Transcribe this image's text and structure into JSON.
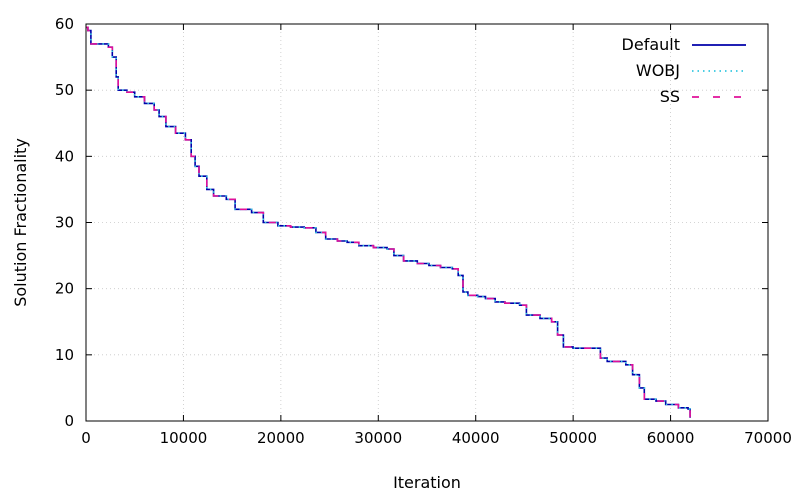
{
  "chart_data": {
    "type": "line",
    "title": "",
    "xlabel": "Iteration",
    "ylabel": "Solution Fractionality",
    "xlim": [
      0,
      70000
    ],
    "ylim": [
      0,
      60
    ],
    "xticks": [
      0,
      10000,
      20000,
      30000,
      40000,
      50000,
      60000,
      70000
    ],
    "yticks": [
      0,
      10,
      20,
      30,
      40,
      50,
      60
    ],
    "xtick_labels": [
      "0",
      "10000",
      "20000",
      "30000",
      "40000",
      "50000",
      "60000",
      "70000"
    ],
    "ytick_labels": [
      "0",
      "10",
      "20",
      "30",
      "40",
      "50",
      "60"
    ],
    "grid": true,
    "legend_position": "top-right",
    "series": [
      {
        "name": "Default",
        "color": "#0000aa",
        "style": "solid",
        "x": [
          0,
          200,
          500,
          2300,
          2700,
          3100,
          3300,
          4200,
          5000,
          6000,
          7000,
          7500,
          8200,
          9200,
          10200,
          10800,
          11200,
          11600,
          12400,
          13100,
          14400,
          15300,
          17000,
          18200,
          19700,
          21000,
          22400,
          23600,
          24600,
          25800,
          26800,
          28000,
          29500,
          30900,
          31600,
          32600,
          34000,
          35200,
          36400,
          37600,
          38200,
          38700,
          39200,
          40200,
          41000,
          42000,
          43000,
          44500,
          45200,
          46600,
          47800,
          48400,
          49000,
          50000,
          51500,
          52800,
          53500,
          55400,
          56100,
          56800,
          57300,
          58500,
          59500,
          60800,
          61800,
          62000
        ],
        "y": [
          59.5,
          59,
          57,
          56.5,
          55,
          52,
          50,
          49.7,
          49,
          48,
          47,
          46,
          44.5,
          43.5,
          42.5,
          40,
          38.5,
          37,
          35,
          34,
          33.5,
          32,
          31.5,
          30,
          29.5,
          29.3,
          29.2,
          28.5,
          27.5,
          27.2,
          27,
          26.5,
          26.2,
          26,
          25,
          24.2,
          23.8,
          23.5,
          23.2,
          23,
          22,
          19.5,
          19,
          18.8,
          18.5,
          18,
          17.8,
          17.5,
          16,
          15.5,
          15,
          13,
          11.2,
          11,
          11,
          9.5,
          9,
          8.5,
          7,
          5,
          3.3,
          3,
          2.5,
          2,
          1.8,
          0.5
        ]
      },
      {
        "name": "WOBJ",
        "color": "#33c7e0",
        "style": "dotted",
        "x": [
          0,
          200,
          500,
          2300,
          2700,
          3100,
          3300,
          4200,
          5000,
          6000,
          7000,
          7500,
          8200,
          9200,
          10200,
          10800,
          11200,
          11600,
          12400,
          13100,
          14400,
          15300,
          17000,
          18200,
          19700,
          21000,
          22400,
          23600,
          24600,
          25800,
          26800,
          28000,
          29500,
          30900,
          31600,
          32600,
          34000,
          35200,
          36400,
          37600,
          38200,
          38700,
          39200,
          40200,
          41000,
          42000,
          43000,
          44500,
          45200,
          46600,
          47800,
          48400,
          49000,
          50000,
          51500,
          52800,
          53500,
          55400,
          56100,
          56800,
          57300,
          58500,
          59500,
          60800,
          61800,
          62000
        ],
        "y": [
          59.5,
          59,
          57,
          56.5,
          55,
          52,
          50,
          49.7,
          49,
          48,
          47,
          46,
          44.5,
          43.5,
          42.5,
          40,
          38.5,
          37,
          35,
          34,
          33.5,
          32,
          31.5,
          30,
          29.5,
          29.3,
          29.2,
          28.5,
          27.5,
          27.2,
          27,
          26.5,
          26.2,
          26,
          25,
          24.2,
          23.8,
          23.5,
          23.2,
          23,
          22,
          19.5,
          19,
          18.8,
          18.5,
          18,
          17.8,
          17.5,
          16,
          15.5,
          15,
          13,
          11.2,
          11,
          11,
          9.5,
          9,
          8.5,
          7,
          5,
          3.3,
          3,
          2.5,
          2,
          1.8,
          0.5
        ]
      },
      {
        "name": "SS",
        "color": "#e0109a",
        "style": "dashed",
        "x": [
          0,
          200,
          500,
          2300,
          2700,
          3100,
          3300,
          4200,
          5000,
          6000,
          7000,
          7500,
          8200,
          9200,
          10200,
          10800,
          11200,
          11600,
          12400,
          13100,
          14400,
          15300,
          17000,
          18200,
          19700,
          21000,
          22400,
          23600,
          24600,
          25800,
          26800,
          28000,
          29500,
          30900,
          31600,
          32600,
          34000,
          35200,
          36400,
          37600,
          38200,
          38700,
          39200,
          40200,
          41000,
          42000,
          43000,
          44500,
          45200,
          46600,
          47800,
          48400,
          49000,
          50000,
          51500,
          52800,
          53500,
          55400,
          56100,
          56800,
          57300,
          58500,
          59500,
          60800,
          61800,
          62000
        ],
        "y": [
          59.5,
          59,
          57,
          56.5,
          55,
          52,
          50,
          49.7,
          49,
          48,
          47,
          46,
          44.5,
          43.5,
          42.5,
          40,
          38.5,
          37,
          35,
          34,
          33.5,
          32,
          31.5,
          30,
          29.5,
          29.3,
          29.2,
          28.5,
          27.5,
          27.2,
          27,
          26.5,
          26.2,
          26,
          25,
          24.2,
          23.8,
          23.5,
          23.2,
          23,
          22,
          19.5,
          19,
          18.8,
          18.5,
          18,
          17.8,
          17.5,
          16,
          15.5,
          15,
          13,
          11.2,
          11,
          11,
          9.5,
          9,
          8.5,
          7,
          5,
          3.3,
          3,
          2.5,
          2,
          1.8,
          0.5
        ]
      }
    ]
  }
}
